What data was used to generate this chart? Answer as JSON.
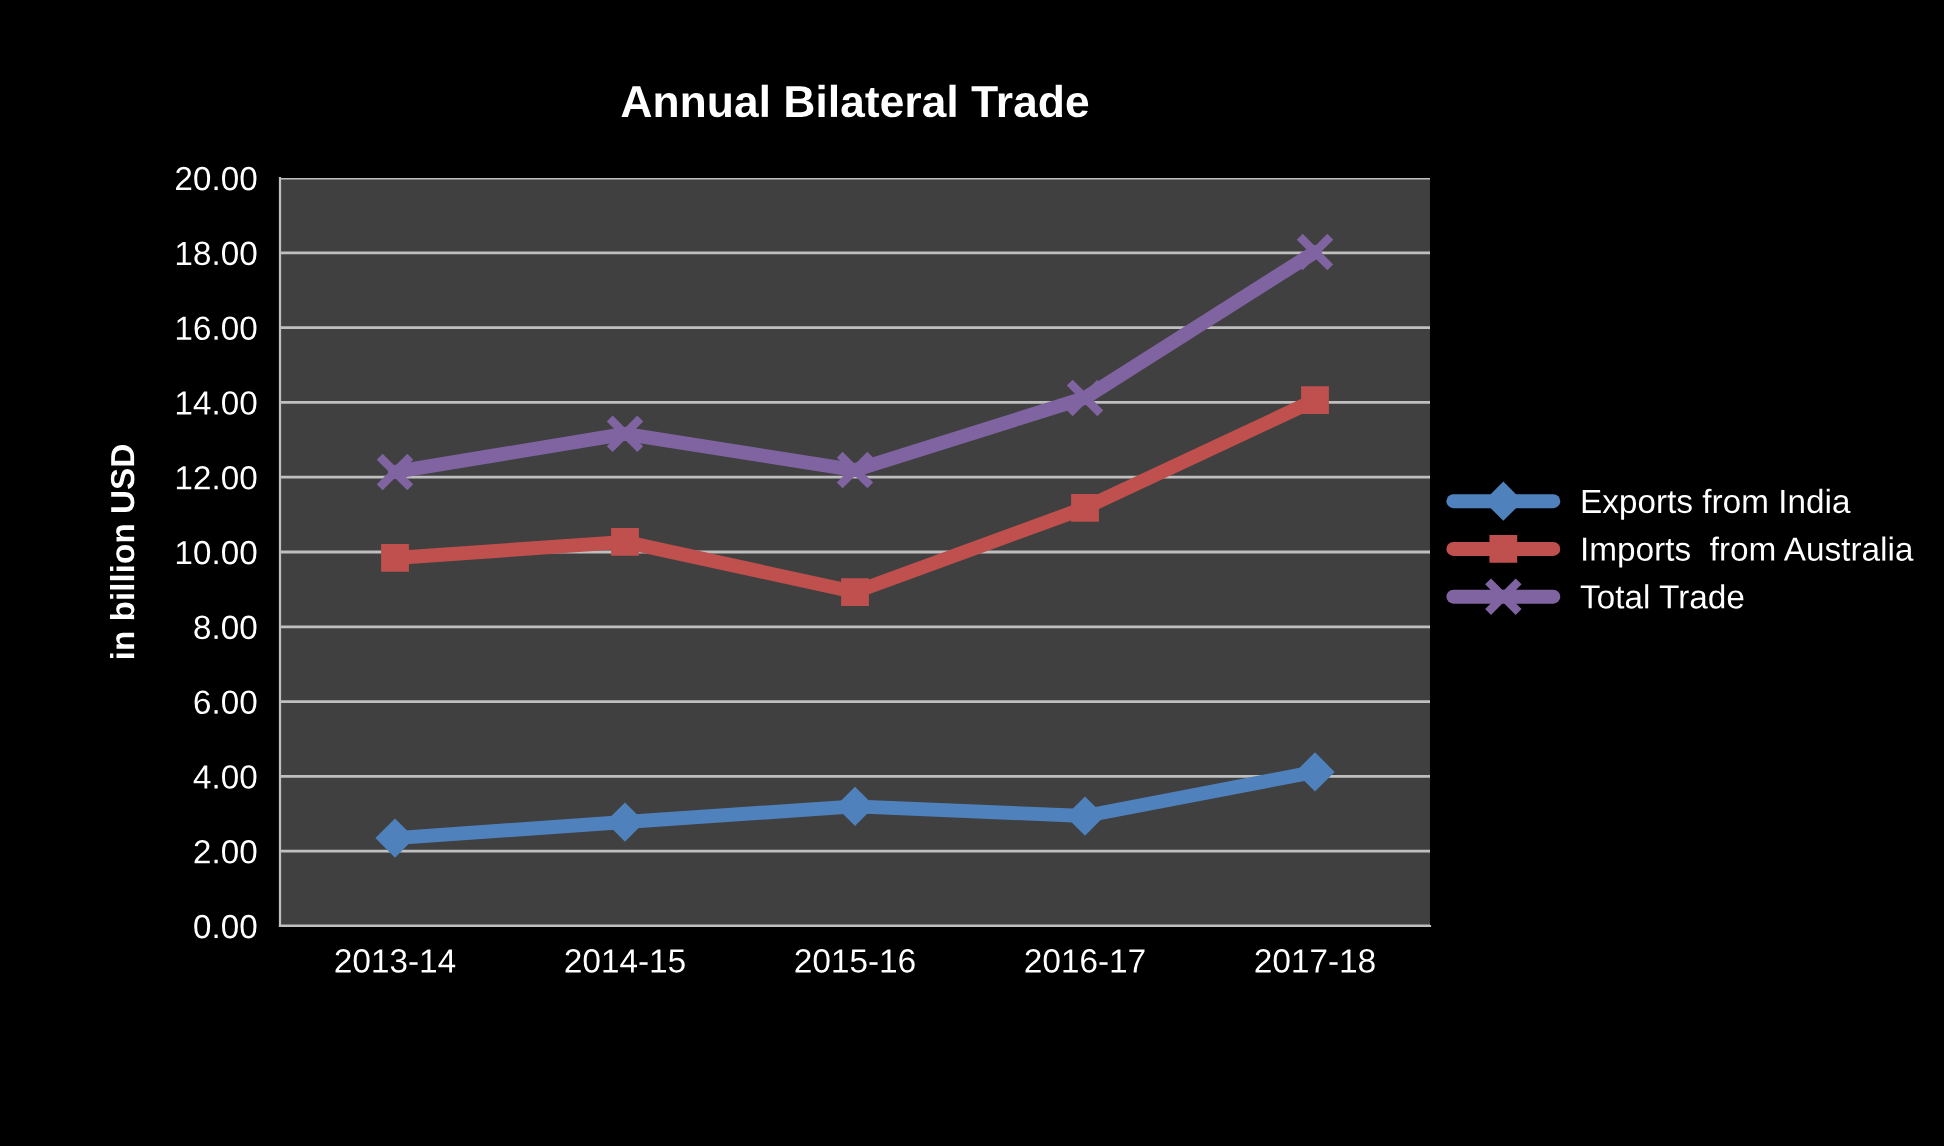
{
  "chart_data": {
    "type": "line",
    "title": "Annual Bilateral Trade",
    "ylabel": "in billion USD",
    "categories": [
      "2013-14",
      "2014-15",
      "2015-16",
      "2016-17",
      "2017-18"
    ],
    "series": [
      {
        "name": "Exports from India",
        "color": "#4f81bd",
        "marker": "diamond",
        "values": [
          2.35,
          2.78,
          3.2,
          2.94,
          4.12
        ]
      },
      {
        "name": "Imports  from Australia",
        "color": "#c0504d",
        "marker": "square",
        "values": [
          9.84,
          10.27,
          8.93,
          11.18,
          14.06
        ]
      },
      {
        "name": "Total Trade",
        "color": "#8064a2",
        "marker": "cross",
        "values": [
          12.14,
          13.16,
          12.19,
          14.12,
          18.02
        ]
      }
    ],
    "ylim": [
      0,
      20
    ],
    "yticks": [
      {
        "value": 0,
        "label": "0.00"
      },
      {
        "value": 2,
        "label": "2.00"
      },
      {
        "value": 4,
        "label": "4.00"
      },
      {
        "value": 6,
        "label": "6.00"
      },
      {
        "value": 8,
        "label": "8.00"
      },
      {
        "value": 10,
        "label": "10.00"
      },
      {
        "value": 12,
        "label": "12.00"
      },
      {
        "value": 14,
        "label": "14.00"
      },
      {
        "value": 16,
        "label": "16.00"
      },
      {
        "value": 18,
        "label": "18.00"
      },
      {
        "value": 20,
        "label": "20.00"
      }
    ],
    "grid": "y",
    "legend": "right"
  }
}
